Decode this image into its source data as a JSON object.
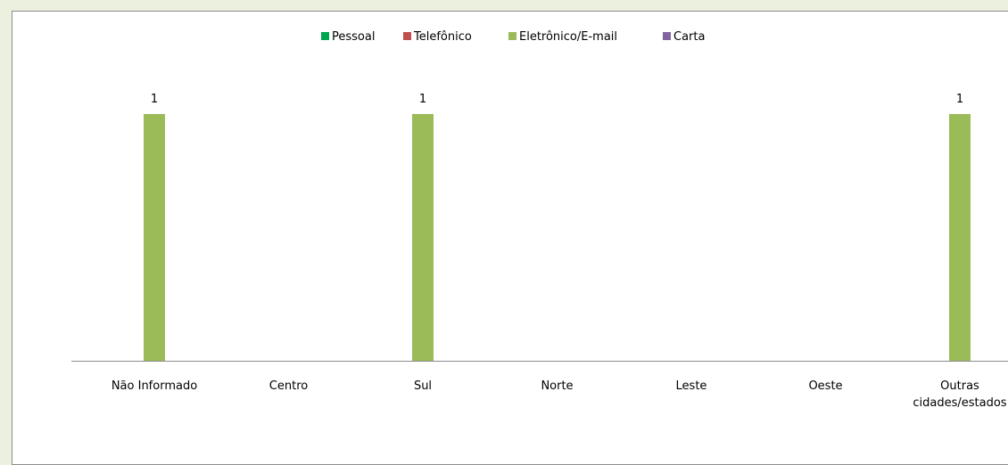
{
  "chart_data": {
    "type": "bar",
    "categories": [
      "Não Informado",
      "Centro",
      "Sul",
      "Norte",
      "Leste",
      "Oeste",
      "Outras cidades/estados"
    ],
    "category_lines": [
      [
        "Não Informado"
      ],
      [
        "Centro"
      ],
      [
        "Sul"
      ],
      [
        "Norte"
      ],
      [
        "Leste"
      ],
      [
        "Oeste"
      ],
      [
        "Outras",
        "cidades/estados"
      ]
    ],
    "series": [
      {
        "name": "Pessoal",
        "color": "#00a550",
        "values": [
          0,
          0,
          0,
          0,
          0,
          0,
          0
        ]
      },
      {
        "name": "Telefônico",
        "color": "#c0504d",
        "values": [
          0,
          0,
          0,
          0,
          0,
          0,
          0
        ]
      },
      {
        "name": "Eletrônico/E-mail",
        "color": "#9bbb59",
        "values": [
          1,
          0,
          1,
          0,
          0,
          0,
          1
        ]
      },
      {
        "name": "Carta",
        "color": "#8064a2",
        "values": [
          0,
          0,
          0,
          0,
          0,
          0,
          0
        ]
      }
    ],
    "data_labels": [
      {
        "category_index": 0,
        "series_index": 2,
        "text": "1"
      },
      {
        "category_index": 2,
        "series_index": 2,
        "text": "1"
      },
      {
        "category_index": 6,
        "series_index": 2,
        "text": "1"
      }
    ],
    "ylim": [
      0,
      1.1
    ],
    "legend_position": "top",
    "grid": false,
    "title": "",
    "xlabel": "",
    "ylabel": ""
  },
  "colors": {
    "page_background": "#ebf1de",
    "axis": "#8c8c8c"
  }
}
